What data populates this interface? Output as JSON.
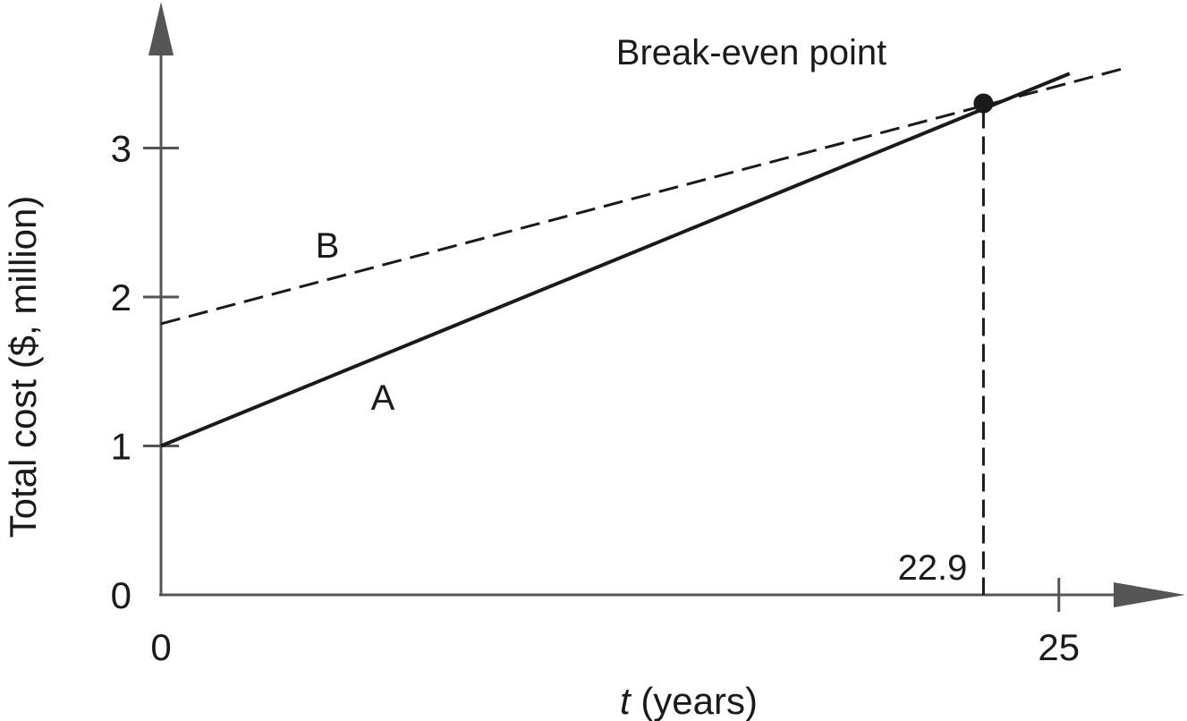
{
  "chart_data": {
    "type": "line",
    "xlabel_italic": "t",
    "xlabel_rest": " (years)",
    "ylabel": "Total cost ($, million)",
    "xlim": [
      0,
      25
    ],
    "ylim": [
      0,
      3
    ],
    "x_ticks": [
      {
        "value": 0,
        "label": "0"
      },
      {
        "value": 25,
        "label": "25"
      }
    ],
    "y_ticks": [
      {
        "value": 0,
        "label": "0"
      },
      {
        "value": 1,
        "label": "1"
      },
      {
        "value": 2,
        "label": "2"
      },
      {
        "value": 3,
        "label": "3"
      }
    ],
    "series": [
      {
        "name": "A",
        "style": "solid",
        "x": [
          0,
          25.3
        ],
        "y": [
          1.0,
          3.5
        ]
      },
      {
        "name": "B",
        "style": "dashed",
        "x": [
          0,
          26.9
        ],
        "y": [
          1.82,
          3.54
        ]
      }
    ],
    "break_even": {
      "x": 22.9,
      "y": 3.3,
      "label": "Break-even point",
      "x_label": "22.9"
    },
    "grid": false,
    "legend": "none"
  }
}
